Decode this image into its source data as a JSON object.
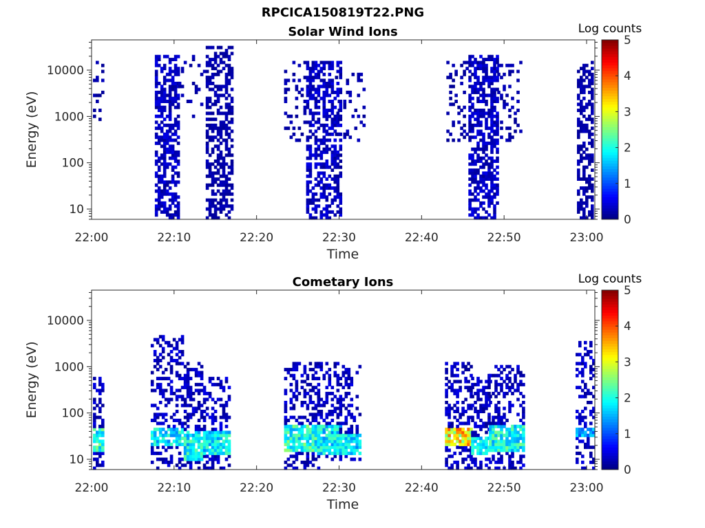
{
  "figure": {
    "title": "RPCICA150819T22.PNG"
  },
  "colorbar": {
    "label": "Log counts",
    "min": 0,
    "max": 5,
    "ticks": [
      "0",
      "1",
      "2",
      "3",
      "4",
      "5"
    ],
    "colormap": "jet"
  },
  "chart_data": [
    {
      "type": "heatmap",
      "title": "Solar Wind Ions",
      "xlabel": "Time",
      "ylabel": "Energy (eV)",
      "y_scale": "log",
      "ylim": [
        6,
        45000
      ],
      "xlim": [
        "22:00",
        "23:01"
      ],
      "xticks": [
        "22:00",
        "22:10",
        "22:20",
        "22:30",
        "22:40",
        "22:50",
        "23:00"
      ],
      "yticks": [
        "10",
        "100",
        "1000",
        "10000"
      ],
      "colorbar_label": "Log counts",
      "clim": [
        0,
        5
      ],
      "bursts": [
        {
          "t_start": "21:59:30",
          "t_end": "22:01:20",
          "e_low": 500,
          "e_high": 15000,
          "density": 0.2,
          "max_log_counts": 0.5
        },
        {
          "t_start": "22:07:40",
          "t_end": "22:10:30",
          "e_low": 6,
          "e_high": 20000,
          "density": 0.55,
          "max_log_counts": 1.3
        },
        {
          "t_start": "22:10:30",
          "t_end": "22:14:10",
          "e_low": 1000,
          "e_high": 20000,
          "density": 0.1,
          "max_log_counts": 0.3
        },
        {
          "t_start": "22:13:50",
          "t_end": "22:17:10",
          "e_low": 6,
          "e_high": 35000,
          "density": 0.55,
          "max_log_counts": 1.0
        },
        {
          "t_start": "22:23:20",
          "t_end": "22:26:00",
          "e_low": 300,
          "e_high": 15000,
          "density": 0.2,
          "max_log_counts": 0.4
        },
        {
          "t_start": "22:26:00",
          "t_end": "22:30:00",
          "e_low": 6,
          "e_high": 15000,
          "density": 0.55,
          "max_log_counts": 1.3
        },
        {
          "t_start": "22:29:30",
          "t_end": "22:33:10",
          "e_low": 300,
          "e_high": 10000,
          "density": 0.2,
          "max_log_counts": 0.4
        },
        {
          "t_start": "22:43:00",
          "t_end": "22:45:40",
          "e_low": 300,
          "e_high": 15000,
          "density": 0.2,
          "max_log_counts": 0.4
        },
        {
          "t_start": "22:45:40",
          "t_end": "22:49:20",
          "e_low": 6,
          "e_high": 22000,
          "density": 0.6,
          "max_log_counts": 1.2
        },
        {
          "t_start": "22:49:10",
          "t_end": "22:52:10",
          "e_low": 300,
          "e_high": 15000,
          "density": 0.2,
          "max_log_counts": 0.4
        },
        {
          "t_start": "22:58:50",
          "t_end": "23:01:20",
          "e_low": 6,
          "e_high": 15000,
          "density": 0.55,
          "max_log_counts": 0.8
        }
      ]
    },
    {
      "type": "heatmap",
      "title": "Cometary Ions",
      "xlabel": "Time",
      "ylabel": "Energy (eV)",
      "y_scale": "log",
      "ylim": [
        6,
        45000
      ],
      "xlim": [
        "22:00",
        "23:01"
      ],
      "xticks": [
        "22:00",
        "22:10",
        "22:20",
        "22:30",
        "22:40",
        "22:50",
        "23:00"
      ],
      "yticks": [
        "10",
        "100",
        "1000",
        "10000"
      ],
      "colorbar_label": "Log counts",
      "clim": [
        0,
        5
      ],
      "bursts": [
        {
          "t_start": "21:59:50",
          "t_end": "22:01:20",
          "e_low": 6,
          "e_high": 600,
          "core_low": 15,
          "core_high": 45,
          "density": 0.4,
          "max_log_counts": 2.6
        },
        {
          "t_start": "22:07:10",
          "t_end": "22:11:10",
          "e_low": 6,
          "e_high": 4500,
          "core_low": 20,
          "core_high": 45,
          "density": 0.35,
          "max_log_counts": 2.3
        },
        {
          "t_start": "22:11:10",
          "t_end": "22:13:30",
          "e_low": 6,
          "e_high": 1300,
          "core_low": 10,
          "core_high": 40,
          "density": 0.45,
          "max_log_counts": 2.4
        },
        {
          "t_start": "22:13:30",
          "t_end": "22:16:40",
          "e_low": 6,
          "e_high": 600,
          "core_low": 12,
          "core_high": 40,
          "density": 0.45,
          "max_log_counts": 2.3
        },
        {
          "t_start": "22:23:20",
          "t_end": "22:27:20",
          "e_low": 6,
          "e_high": 1200,
          "core_low": 15,
          "core_high": 60,
          "density": 0.4,
          "max_log_counts": 2.6
        },
        {
          "t_start": "22:27:20",
          "t_end": "22:30:00",
          "e_low": 10,
          "e_high": 1200,
          "core_low": 12,
          "core_high": 60,
          "density": 0.4,
          "max_log_counts": 2.3
        },
        {
          "t_start": "22:30:00",
          "t_end": "22:32:40",
          "e_low": 10,
          "e_high": 1100,
          "core_low": 12,
          "core_high": 35,
          "density": 0.4,
          "max_log_counts": 2.2
        },
        {
          "t_start": "22:42:50",
          "t_end": "22:46:00",
          "e_low": 6,
          "e_high": 1200,
          "core_low": 20,
          "core_high": 45,
          "density": 0.4,
          "max_log_counts": 4.0
        },
        {
          "t_start": "22:46:00",
          "t_end": "22:48:10",
          "e_low": 6,
          "e_high": 700,
          "core_low": 12,
          "core_high": 30,
          "density": 0.4,
          "max_log_counts": 2.2
        },
        {
          "t_start": "22:48:10",
          "t_end": "22:52:30",
          "e_low": 6,
          "e_high": 1100,
          "core_low": 15,
          "core_high": 60,
          "density": 0.4,
          "max_log_counts": 2.5
        },
        {
          "t_start": "22:58:40",
          "t_end": "23:01:20",
          "e_low": 6,
          "e_high": 3500,
          "core_low": 30,
          "core_high": 50,
          "density": 0.3,
          "max_log_counts": 1.8
        }
      ]
    }
  ]
}
